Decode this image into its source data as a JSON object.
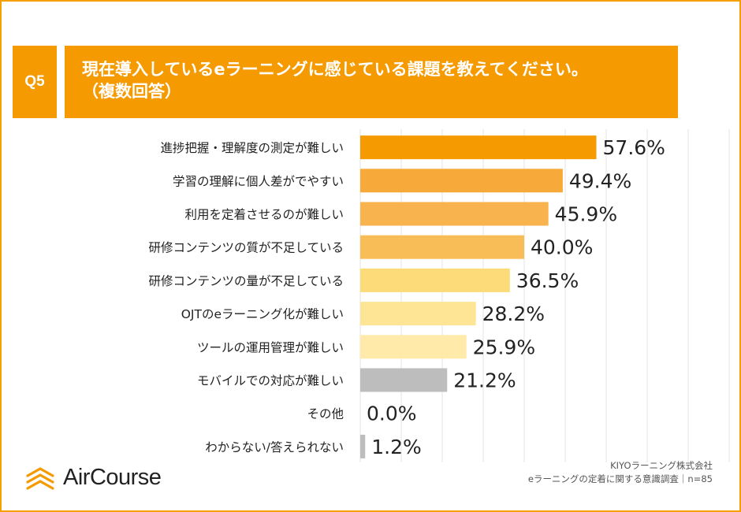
{
  "question": {
    "badge": "Q5",
    "line1": "現在導入しているeラーニングに感じている課題を教えてください。",
    "line2": "（複数回答）"
  },
  "chart_data": {
    "type": "bar",
    "orientation": "horizontal",
    "categories": [
      "進捗把握・理解度の測定が難しい",
      "学習の理解に個人差がでやすい",
      "利用を定着させるのが難しい",
      "研修コンテンツの質が不足している",
      "研修コンテンツの量が不足している",
      "OJTのeラーニング化が難しい",
      "ツールの運用管理が難しい",
      "モバイルでの対応が難しい",
      "その他",
      "わからない/答えられない"
    ],
    "values": [
      57.6,
      49.4,
      45.9,
      40.0,
      36.5,
      28.2,
      25.9,
      21.2,
      0.0,
      1.2
    ],
    "data_labels": [
      "57.6%",
      "49.4%",
      "45.9%",
      "40.0%",
      "36.5%",
      "28.2%",
      "25.9%",
      "21.2%",
      "0.0%",
      "1.2%"
    ],
    "bar_colors": [
      "#f59a00",
      "#f7a93a",
      "#f8b24e",
      "#f9bd58",
      "#fddb78",
      "#fee596",
      "#ffeaaa",
      "#bdbdbd",
      "#bdbdbd",
      "#bdbdbd"
    ],
    "xlim": [
      0,
      100
    ],
    "grid": true
  },
  "logo": {
    "icon": "aircourse-logo-icon",
    "text": "AirCourse",
    "accent": "#f59a00"
  },
  "source": {
    "line1": "KIYOラーニング株式会社",
    "line2": "eラーニングの定着に関する意識調査｜n=85"
  }
}
